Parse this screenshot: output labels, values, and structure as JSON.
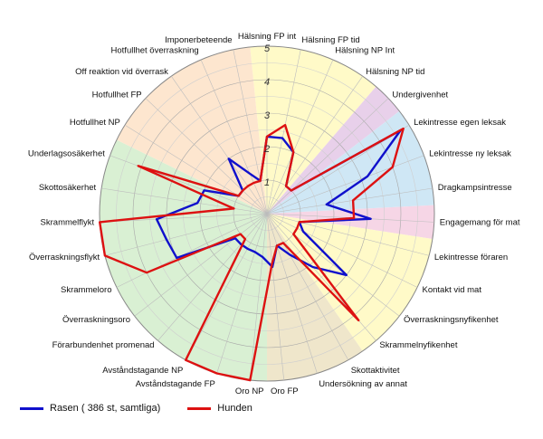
{
  "chart_data": {
    "type": "radar",
    "categories": [
      "Hälsning FP int",
      "Hälsning FP tid",
      "Hälsning NP Int",
      "Hälsning NP tid",
      "Undergivenhet",
      "Lekintresse egen leksak",
      "Lekintresse ny leksak",
      "Dragkampsintresse",
      "Engagemang för mat",
      "Lekintresse föraren",
      "Kontakt vid mat",
      "Överraskningsnyfikenhet",
      "Skrammelnyfikenhet",
      "Skottaktivitet",
      "Undersökning av annat",
      "Oro FP",
      "Oro NP",
      "Avståndstagande FP",
      "Avståndstagande NP",
      "Förarbundenhet promenad",
      "Överraskningsoro",
      "Skrammeloro",
      "Överraskningsflykt",
      "Skrammelflykt",
      "Skottosäkerhet",
      "Underlagsosäkerhet",
      "Hotfullhet NP",
      "Hotfullhet FP",
      "Off reaktion vid överrask",
      "Hotfullhet överraskning",
      "Imponerbeteende"
    ],
    "series": [
      {
        "name": "Rasen ( 386 st, samtliga)",
        "color": "#1010cc",
        "values": [
          2.3,
          2.3,
          2.0,
          1.0,
          1.0,
          4.7,
          3.2,
          1.8,
          3.1,
          1.0,
          1.2,
          3.0,
          2.1,
          1.4,
          1.0,
          1.6,
          1.3,
          1.2,
          1.2,
          1.2,
          1.2,
          3.0,
          3.1,
          3.3,
          2.1,
          2.0,
          1.0,
          1.0,
          2.0,
          1.3,
          1.0
        ]
      },
      {
        "name": "Hunden",
        "color": "#dd1111",
        "values": [
          2.3,
          2.7,
          2.0,
          1.0,
          1.0,
          4.8,
          4.0,
          2.6,
          2.6,
          1.0,
          1.0,
          1.0,
          4.2,
          1.0,
          1.0,
          1.5,
          5.0,
          5.0,
          5.0,
          1.0,
          1.0,
          4.0,
          5.0,
          5.0,
          1.0,
          4.1,
          1.0,
          1.0,
          1.0,
          1.0,
          1.0
        ]
      }
    ],
    "radial_ticks": [
      1,
      2,
      3,
      4,
      5
    ],
    "range": [
      0,
      5
    ],
    "sectors": [
      {
        "from": 0,
        "to": 3,
        "color": "#fffac8"
      },
      {
        "from": 4,
        "to": 4,
        "color": "#e8d0ea"
      },
      {
        "from": 5,
        "to": 7,
        "color": "#cfe7f5"
      },
      {
        "from": 8,
        "to": 8,
        "color": "#f6d6e6"
      },
      {
        "from": 9,
        "to": 12,
        "color": "#fffac8"
      },
      {
        "from": 13,
        "to": 15,
        "color": "#efe6cb"
      },
      {
        "from": 16,
        "to": 25,
        "color": "#d9f0d3"
      },
      {
        "from": 26,
        "to": 30,
        "color": "#fde6cf"
      }
    ],
    "grid": true,
    "legend_position": "bottom-left"
  }
}
